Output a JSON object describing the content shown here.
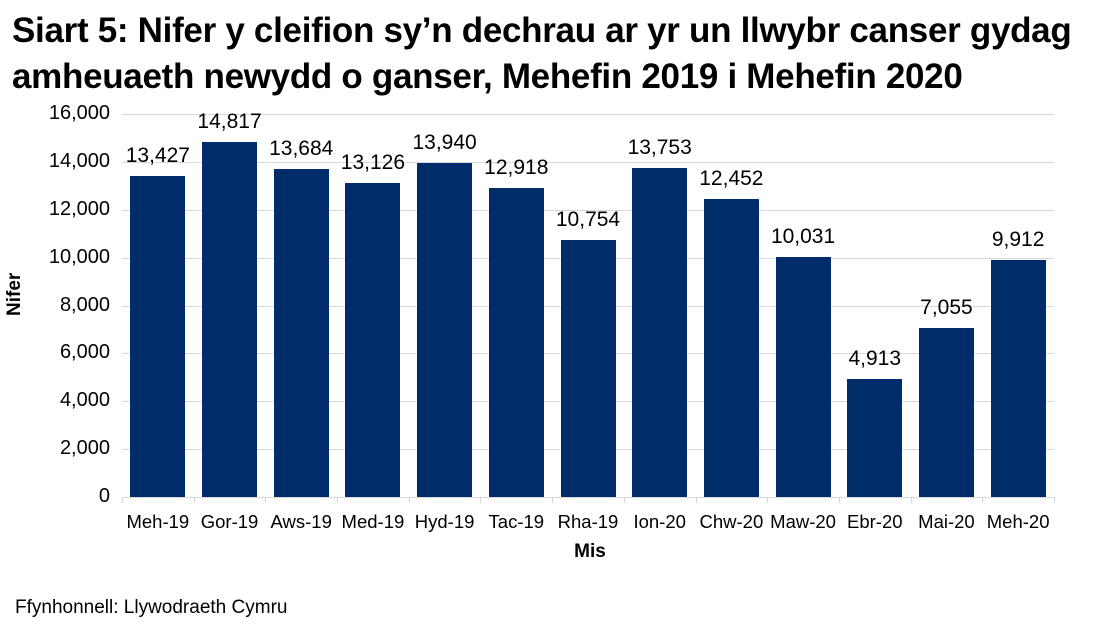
{
  "title": "Siart 5: Nifer y cleifion sy’n dechrau ar yr un llwybr canser gydag amheuaeth newydd o ganser, Mehefin 2019 i Mehefin 2020",
  "source": "Ffynhonnell: Llywodraeth Cymru",
  "colors": {
    "bar": "#002D6A",
    "grid": "#D9D9D9"
  },
  "chart_data": {
    "type": "bar",
    "title": "Siart 5: Nifer y cleifion sy’n dechrau ar yr un llwybr canser gydag amheuaeth newydd o ganser, Mehefin 2019 i Mehefin 2020",
    "xlabel": "Mis",
    "ylabel": "Nifer",
    "ylim": [
      0,
      16000
    ],
    "yticks": [
      "0",
      "2,000",
      "4,000",
      "6,000",
      "8,000",
      "10,000",
      "12,000",
      "14,000",
      "16,000"
    ],
    "grid": true,
    "legend": "none",
    "categories": [
      "Meh-19",
      "Gor-19",
      "Aws-19",
      "Med-19",
      "Hyd-19",
      "Tac-19",
      "Rha-19",
      "Ion-20",
      "Chw-20",
      "Maw-20",
      "Ebr-20",
      "Mai-20",
      "Meh-20"
    ],
    "values": [
      13427,
      14817,
      13684,
      13126,
      13940,
      12918,
      10754,
      13753,
      12452,
      10031,
      4913,
      7055,
      9912
    ],
    "labels": [
      "13,427",
      "14,817",
      "13,684",
      "13,126",
      "13,940",
      "12,918",
      "10,754",
      "13,753",
      "12,452",
      "10,031",
      "4,913",
      "7,055",
      "9,912"
    ]
  }
}
